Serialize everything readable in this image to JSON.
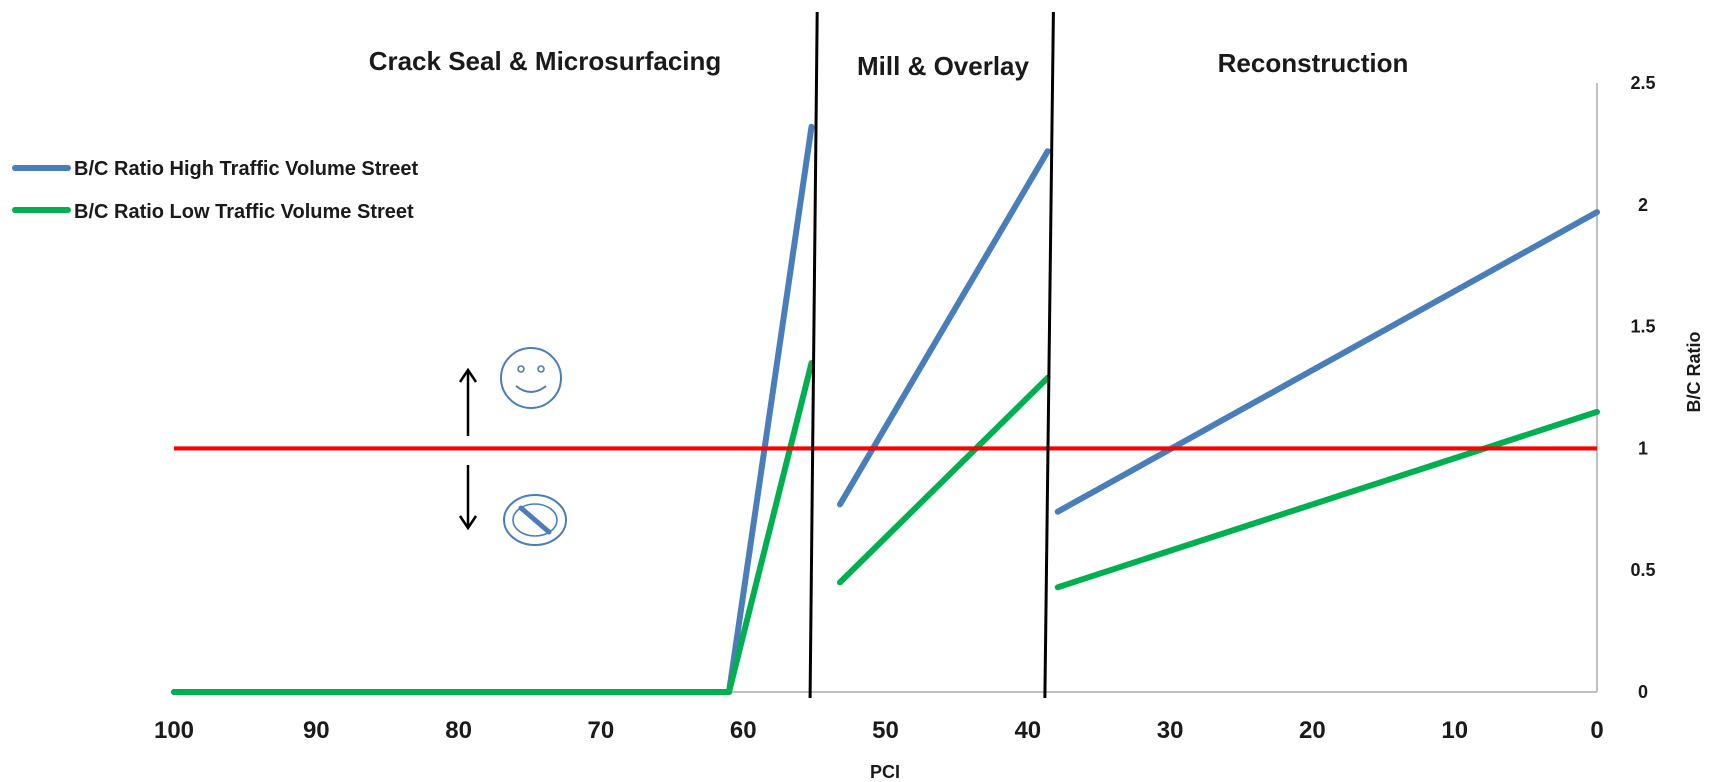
{
  "chart_data": {
    "type": "line",
    "xlabel": "PCI",
    "ylabel": "B/C Ratio",
    "xlim": [
      100,
      0
    ],
    "ylim": [
      0,
      2.5
    ],
    "x_reversed": true,
    "y_axis_position": "right",
    "xticks": [
      100,
      90,
      80,
      70,
      60,
      50,
      40,
      30,
      20,
      10,
      0
    ],
    "yticks": [
      0,
      0.5,
      1,
      1.5,
      2,
      2.5
    ],
    "grid": false,
    "legend_position": "top-left",
    "zones": [
      {
        "label": "Crack Seal & Microsurfacing"
      },
      {
        "label": "Mill & Overlay"
      },
      {
        "label": "Reconstruction"
      }
    ],
    "zone_dividers": [
      {
        "x_bottom": 55.3,
        "x_top": 54.8
      },
      {
        "x_bottom": 38.8,
        "x_top": 38.2
      }
    ],
    "reference_line": {
      "y": 1,
      "x_start": 100,
      "x_end": 0,
      "color": "#ff0000"
    },
    "series": [
      {
        "name": "B/C Ratio High Traffic Volume Street",
        "color": "#4a7ebb",
        "segments": [
          [
            [
              100,
              0
            ],
            [
              61,
              0
            ],
            [
              55.2,
              2.32
            ]
          ],
          [
            [
              53.2,
              0.77
            ],
            [
              38.6,
              2.22
            ]
          ],
          [
            [
              37.9,
              0.74
            ],
            [
              0,
              1.97
            ]
          ]
        ]
      },
      {
        "name": "B/C Ratio Low Traffic Volume Street",
        "color": "#00b050",
        "segments": [
          [
            [
              100,
              0
            ],
            [
              61,
              0
            ],
            [
              55.2,
              1.35
            ]
          ],
          [
            [
              53.2,
              0.45
            ],
            [
              38.6,
              1.29
            ]
          ],
          [
            [
              37.9,
              0.43
            ],
            [
              0,
              1.15
            ]
          ]
        ]
      }
    ],
    "annotations": [
      {
        "type": "arrow-up",
        "icon": "smiley-face-icon"
      },
      {
        "type": "arrow-down",
        "icon": "no-entry-icon"
      }
    ]
  }
}
